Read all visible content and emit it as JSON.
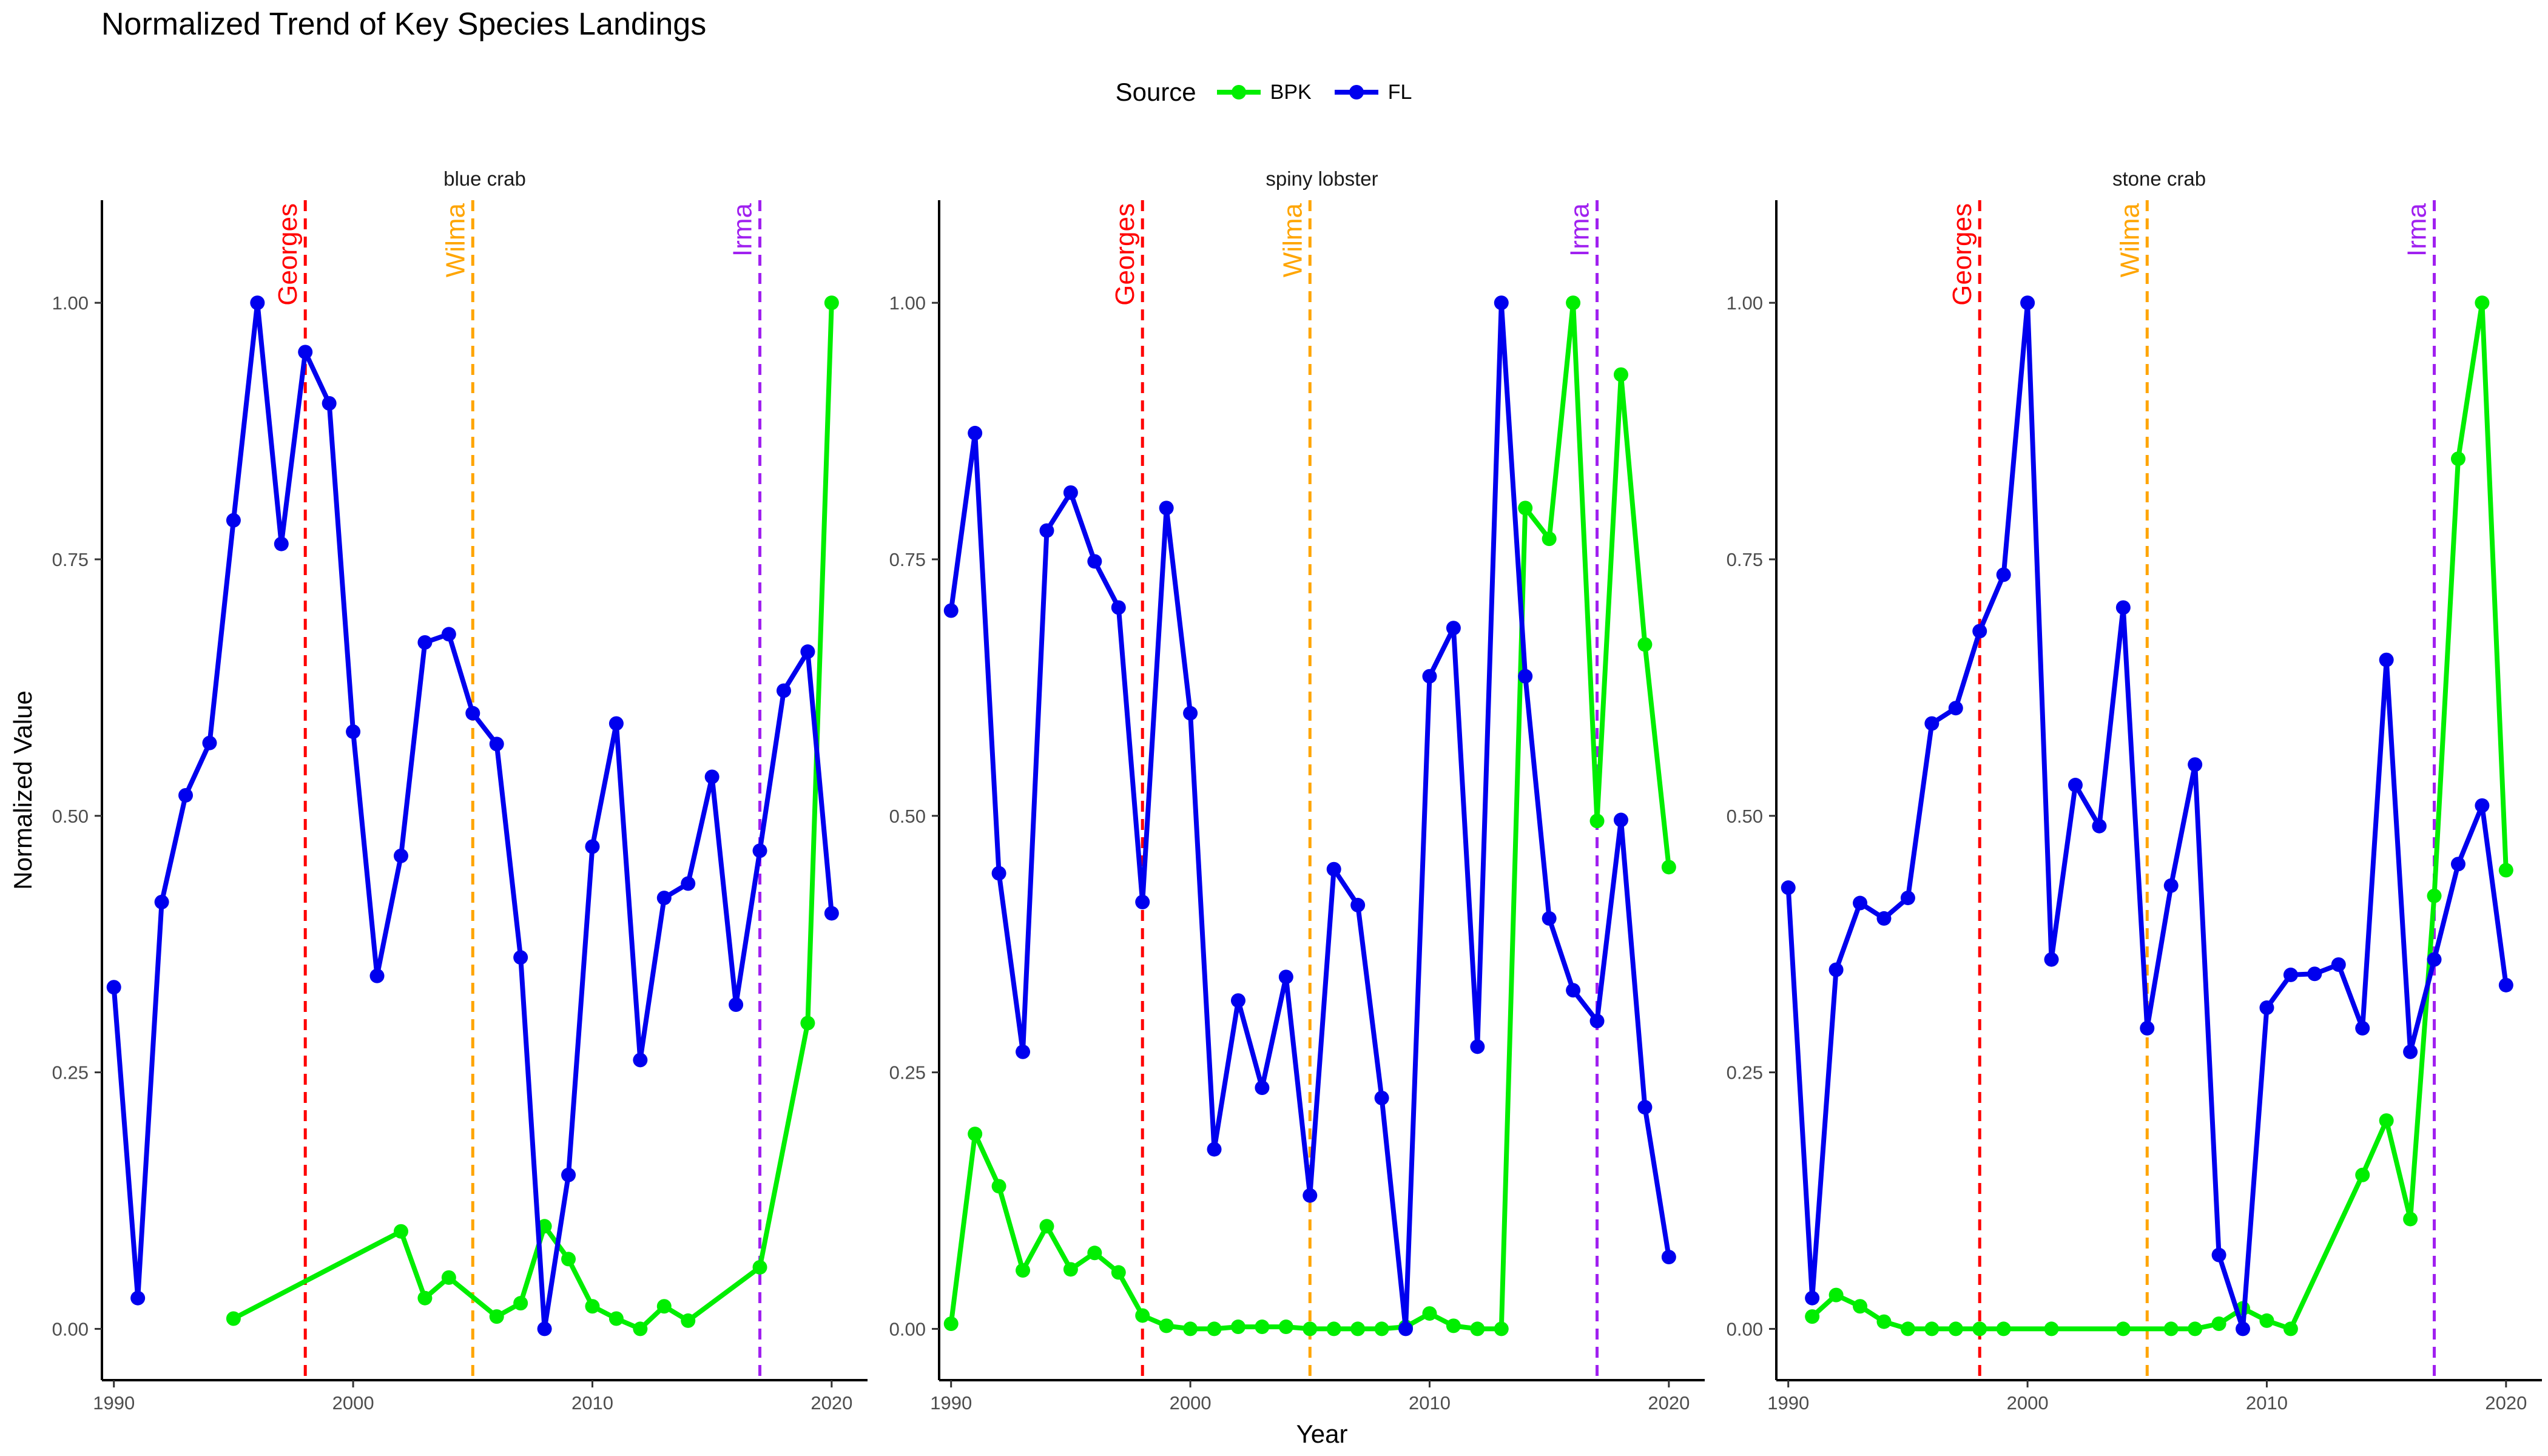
{
  "chart_data": {
    "type": "line",
    "title": "Normalized Trend of Key Species Landings",
    "xlabel": "Year",
    "ylabel": "Normalized Value",
    "legend_title": "Source",
    "legend_position": "top",
    "xlim": [
      1989.5,
      2021.5
    ],
    "ylim": [
      -0.05,
      1.1
    ],
    "x_ticks": [
      1990,
      2000,
      2010,
      2020
    ],
    "y_ticks": [
      0,
      0.25,
      0.5,
      0.75,
      1
    ],
    "y_tick_labels": [
      "0.00",
      "0.25",
      "0.50",
      "0.75",
      "1.00"
    ],
    "grid": false,
    "colors": {
      "BPK": "#00ee00",
      "FL": "#0000ee"
    },
    "series_names": [
      "BPK",
      "FL"
    ],
    "events": [
      {
        "label": "Georges",
        "year": 1998,
        "color": "#ff0000"
      },
      {
        "label": "Wilma",
        "year": 2005,
        "color": "#ffa500"
      },
      {
        "label": "Irma",
        "year": 2017,
        "color": "#a020f0"
      }
    ],
    "panels": [
      {
        "title": "blue crab",
        "series": [
          {
            "name": "FL",
            "x": [
              1990,
              1991,
              1992,
              1993,
              1994,
              1995,
              1996,
              1997,
              1998,
              1999,
              2000,
              2001,
              2002,
              2003,
              2004,
              2005,
              2006,
              2007,
              2008,
              2009,
              2010,
              2011,
              2012,
              2013,
              2014,
              2015,
              2016,
              2017,
              2018,
              2019,
              2020
            ],
            "y": [
              0.333,
              0.03,
              0.416,
              0.52,
              0.571,
              0.788,
              1.0,
              0.765,
              0.952,
              0.902,
              0.582,
              0.344,
              0.461,
              0.669,
              0.677,
              0.6,
              0.57,
              0.362,
              0.0,
              0.15,
              0.47,
              0.59,
              0.262,
              0.42,
              0.434,
              0.538,
              0.316,
              0.466,
              0.622,
              0.66,
              0.405
            ]
          },
          {
            "name": "BPK",
            "x": [
              1995,
              2002,
              2003,
              2004,
              2006,
              2007,
              2008,
              2009,
              2010,
              2011,
              2012,
              2013,
              2014,
              2017,
              2019,
              2020
            ],
            "y": [
              0.01,
              0.095,
              0.03,
              0.05,
              0.012,
              0.025,
              0.1,
              0.068,
              0.022,
              0.01,
              0.0,
              0.022,
              0.008,
              0.06,
              0.298,
              1.0
            ]
          }
        ]
      },
      {
        "title": "spiny lobster",
        "series": [
          {
            "name": "FL",
            "x": [
              1990,
              1991,
              1992,
              1993,
              1994,
              1995,
              1996,
              1997,
              1998,
              1999,
              2000,
              2001,
              2002,
              2003,
              2004,
              2005,
              2006,
              2007,
              2008,
              2009,
              2010,
              2011,
              2012,
              2013,
              2014,
              2015,
              2016,
              2017,
              2018,
              2019,
              2020
            ],
            "y": [
              0.7,
              0.873,
              0.444,
              0.27,
              0.778,
              0.815,
              0.748,
              0.703,
              0.416,
              0.8,
              0.6,
              0.175,
              0.32,
              0.235,
              0.343,
              0.13,
              0.448,
              0.413,
              0.225,
              0.0,
              0.636,
              0.683,
              0.275,
              1.0,
              0.636,
              0.4,
              0.33,
              0.3,
              0.496,
              0.216,
              0.07
            ]
          },
          {
            "name": "BPK",
            "x": [
              1990,
              1991,
              1992,
              1993,
              1994,
              1995,
              1996,
              1997,
              1998,
              1999,
              2000,
              2001,
              2002,
              2003,
              2004,
              2005,
              2006,
              2007,
              2008,
              2009,
              2010,
              2011,
              2012,
              2013,
              2014,
              2015,
              2016,
              2017,
              2018,
              2019,
              2020
            ],
            "y": [
              0.005,
              0.19,
              0.139,
              0.057,
              0.1,
              0.058,
              0.074,
              0.055,
              0.013,
              0.003,
              0.0,
              0.0,
              0.002,
              0.002,
              0.002,
              0.0,
              0.0,
              0.0,
              0.0,
              0.002,
              0.015,
              0.003,
              0.0,
              0.0,
              0.8,
              0.77,
              1.0,
              0.495,
              0.93,
              0.667,
              0.45
            ]
          }
        ]
      },
      {
        "title": "stone crab",
        "series": [
          {
            "name": "FL",
            "x": [
              1990,
              1991,
              1992,
              1993,
              1994,
              1995,
              1996,
              1997,
              1998,
              1999,
              2000,
              2001,
              2002,
              2003,
              2004,
              2005,
              2006,
              2007,
              2008,
              2009,
              2010,
              2011,
              2012,
              2013,
              2014,
              2015,
              2016,
              2017,
              2018,
              2019,
              2020
            ],
            "y": [
              0.43,
              0.03,
              0.35,
              0.415,
              0.4,
              0.42,
              0.59,
              0.605,
              0.68,
              0.735,
              1.0,
              0.36,
              0.53,
              0.49,
              0.703,
              0.293,
              0.432,
              0.55,
              0.072,
              0.0,
              0.313,
              0.345,
              0.346,
              0.355,
              0.293,
              0.652,
              0.27,
              0.36,
              0.453,
              0.51,
              0.335
            ]
          },
          {
            "name": "BPK",
            "x": [
              1991,
              1992,
              1993,
              1994,
              1995,
              1996,
              1997,
              1998,
              1999,
              2001,
              2004,
              2006,
              2007,
              2008,
              2009,
              2010,
              2011,
              2014,
              2015,
              2016,
              2017,
              2018,
              2019,
              2020
            ],
            "y": [
              0.012,
              0.033,
              0.022,
              0.007,
              0.0,
              0.0,
              0.0,
              0.0,
              0.0,
              0.0,
              0.0,
              0.0,
              0.0,
              0.005,
              0.02,
              0.008,
              0.0,
              0.15,
              0.203,
              0.107,
              0.422,
              0.848,
              1.0,
              0.447
            ]
          }
        ]
      }
    ]
  }
}
